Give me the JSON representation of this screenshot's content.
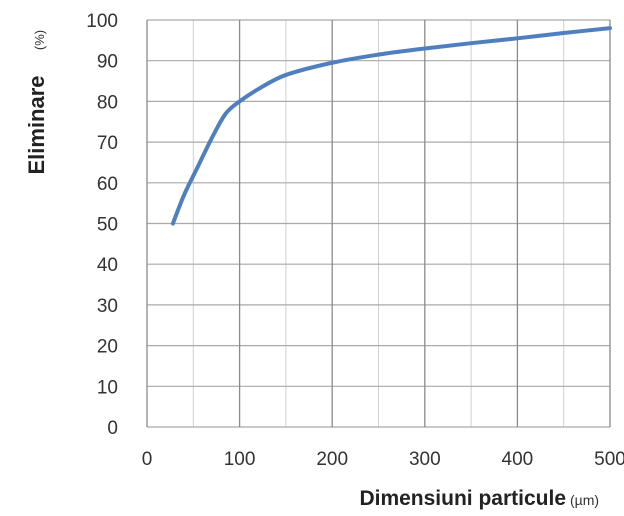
{
  "chart_data": {
    "type": "line",
    "xlabel": "Dimensiuni particule",
    "xunit": "(µm)",
    "ylabel": "Eliminare",
    "yunit": "(%)",
    "xlim": [
      0,
      500
    ],
    "ylim": [
      0,
      100
    ],
    "xticks": [
      0,
      100,
      200,
      300,
      400,
      500
    ],
    "yticks": [
      0,
      10,
      20,
      30,
      40,
      50,
      60,
      70,
      80,
      90,
      100
    ],
    "grid": true,
    "series": [
      {
        "color": "#4f7fbf",
        "x": [
          28,
          40,
          55,
          70,
          85,
          100,
          120,
          150,
          200,
          250,
          300,
          350,
          400,
          450,
          500
        ],
        "y": [
          50,
          57,
          64,
          71,
          77,
          80,
          83,
          86.5,
          89.5,
          91.5,
          93,
          94.3,
          95.5,
          96.8,
          98
        ]
      }
    ]
  }
}
